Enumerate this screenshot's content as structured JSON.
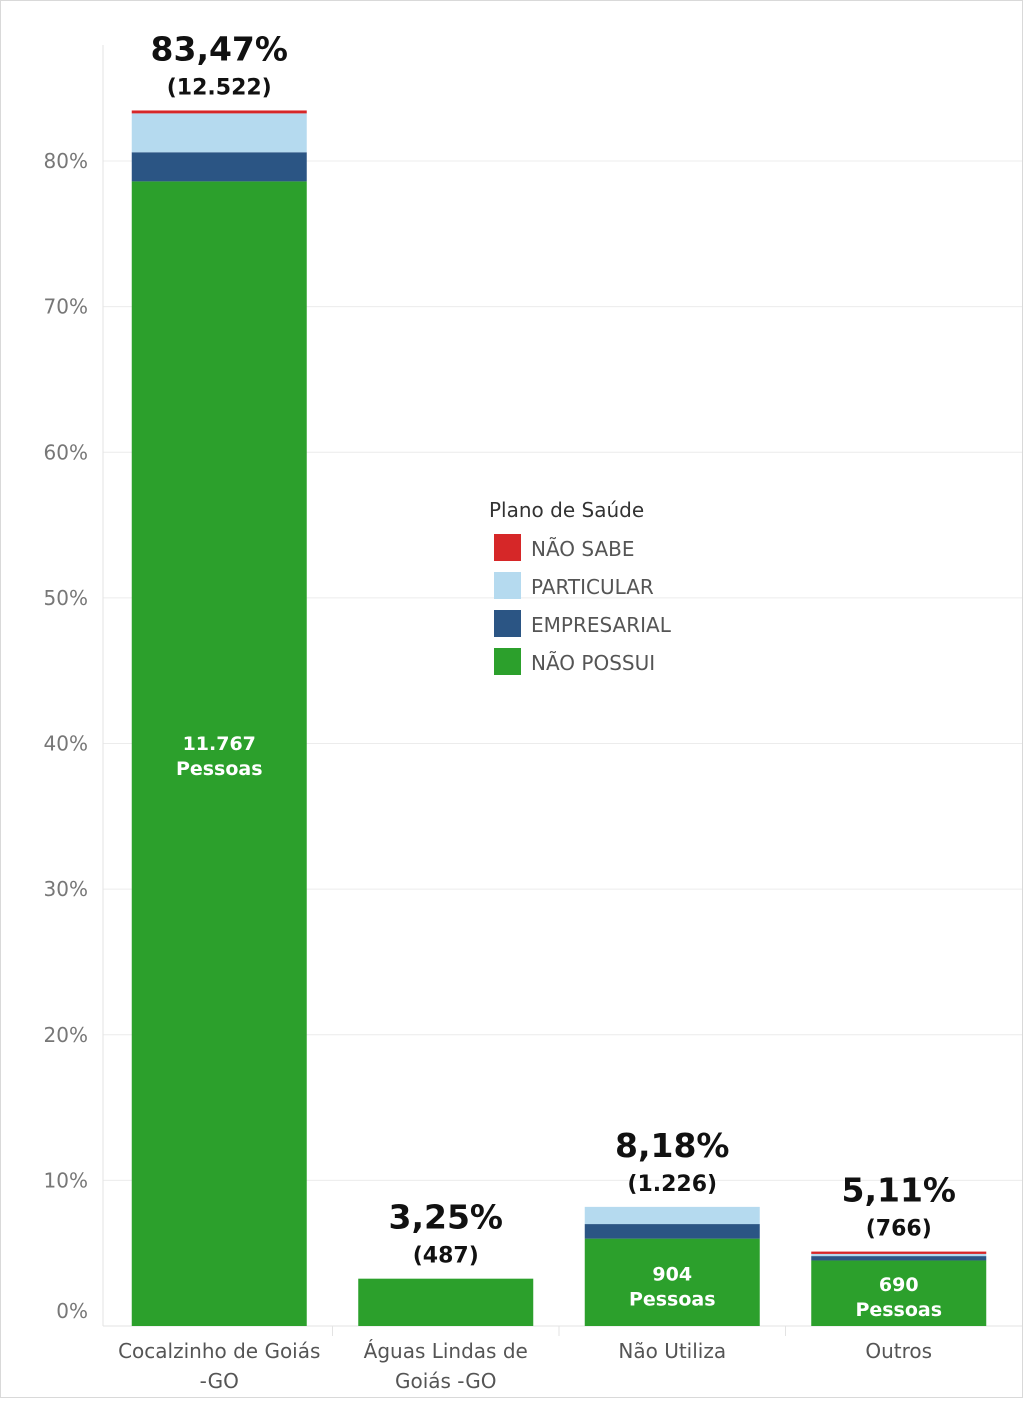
{
  "chart_data": {
    "type": "bar",
    "stacked": true,
    "categories": [
      [
        "Cocalzinho de Goiás",
        "-GO"
      ],
      [
        "Águas Lindas de",
        "Goiás -GO"
      ],
      [
        "Não Utiliza"
      ],
      [
        "Outros"
      ]
    ],
    "series": [
      {
        "name": "NÃO POSSUI",
        "color": "#2ca02c",
        "values": [
          78.6,
          3.25,
          6.0,
          4.5
        ]
      },
      {
        "name": "EMPRESARIAL",
        "color": "#2b5584",
        "values": [
          2.0,
          0,
          1.0,
          0.3
        ]
      },
      {
        "name": "PARTICULAR",
        "color": "#b5daef",
        "values": [
          2.67,
          0,
          1.18,
          0.15
        ]
      },
      {
        "name": "NÃO SABE",
        "color": "#d62728",
        "values": [
          0.2,
          0,
          0,
          0.16
        ]
      }
    ],
    "totals": {
      "percent_labels": [
        "83,47%",
        "3,25%",
        "8,18%",
        "5,11%"
      ],
      "count_labels": [
        "(12.522)",
        "(487)",
        "(1.226)",
        "(766)"
      ]
    },
    "inbar_labels": [
      [
        "11.767",
        "Pessoas"
      ],
      null,
      [
        "904",
        "Pessoas"
      ],
      [
        "690",
        "Pessoas"
      ]
    ],
    "ylim": [
      0,
      85
    ],
    "yticks": [
      0,
      10,
      20,
      30,
      40,
      50,
      60,
      70,
      80
    ],
    "ytick_labels": [
      "0%",
      "10%",
      "20%",
      "30%",
      "40%",
      "50%",
      "60%",
      "70%",
      "80%"
    ],
    "legend": {
      "title": "Plano de Saúde",
      "order": [
        "NÃO SABE",
        "PARTICULAR",
        "EMPRESARIAL",
        "NÃO POSSUI"
      ],
      "placement": "center"
    },
    "grid": true
  }
}
